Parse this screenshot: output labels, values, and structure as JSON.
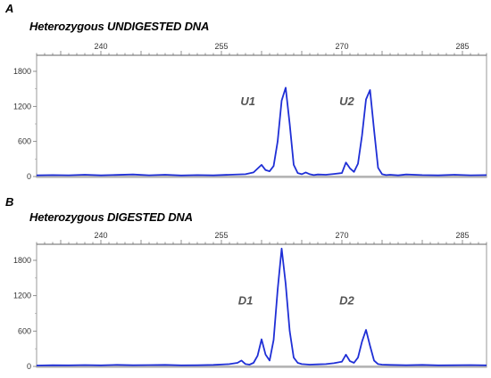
{
  "chart_data": [
    {
      "type": "line",
      "panel_label": "A",
      "title": "Heterozygous UNDIGESTED DNA",
      "x_ticks": [
        240,
        255,
        270,
        285
      ],
      "y_ticks": [
        0,
        600,
        1200,
        1800
      ],
      "xlim": [
        232,
        288
      ],
      "ylim": [
        0,
        2000
      ],
      "grid": false,
      "series": [
        {
          "color": "#1f2fd6",
          "x": [
            232,
            234,
            236,
            238,
            240,
            242,
            244,
            246,
            248,
            250,
            252,
            254,
            256,
            258,
            259,
            260,
            260.5,
            261,
            261.5,
            262,
            262.5,
            263,
            263.5,
            264,
            264.5,
            265,
            265.5,
            266,
            266.5,
            267,
            268,
            269,
            270,
            270.5,
            271,
            271.5,
            272,
            272.5,
            273,
            273.5,
            274,
            274.5,
            275,
            275.5,
            276,
            277,
            278,
            280,
            282,
            284,
            286,
            288
          ],
          "y": [
            20,
            25,
            22,
            30,
            20,
            28,
            35,
            22,
            30,
            18,
            25,
            20,
            30,
            40,
            70,
            200,
            110,
            90,
            180,
            600,
            1300,
            1520,
            900,
            200,
            60,
            40,
            70,
            40,
            25,
            35,
            30,
            45,
            60,
            240,
            140,
            80,
            220,
            700,
            1320,
            1480,
            800,
            150,
            40,
            25,
            30,
            20,
            35,
            25,
            20,
            30,
            22,
            25
          ]
        }
      ],
      "annotations": [
        {
          "text": "U1",
          "x": 258.3,
          "y": 1220
        },
        {
          "text": "U2",
          "x": 270.6,
          "y": 1220
        }
      ]
    },
    {
      "type": "line",
      "panel_label": "B",
      "title": "Heterozygous DIGESTED DNA",
      "x_ticks": [
        240,
        255,
        270,
        285
      ],
      "y_ticks": [
        0,
        600,
        1200,
        1800
      ],
      "xlim": [
        232,
        288
      ],
      "ylim": [
        0,
        2000
      ],
      "grid": false,
      "series": [
        {
          "color": "#1f2fd6",
          "x": [
            232,
            234,
            236,
            238,
            240,
            242,
            244,
            246,
            248,
            250,
            252,
            254,
            256,
            257,
            257.5,
            258,
            258.5,
            259,
            259.5,
            260,
            260.5,
            261,
            261.5,
            262,
            262.5,
            263,
            263.5,
            264,
            264.5,
            265,
            266,
            267,
            268,
            269,
            270,
            270.5,
            271,
            271.5,
            272,
            272.5,
            273,
            273.5,
            274,
            274.5,
            275,
            276,
            278,
            280,
            282,
            284,
            286,
            288
          ],
          "y": [
            15,
            20,
            18,
            22,
            18,
            25,
            20,
            22,
            25,
            18,
            20,
            25,
            40,
            60,
            100,
            40,
            30,
            60,
            180,
            460,
            200,
            100,
            450,
            1300,
            2000,
            1400,
            600,
            150,
            60,
            40,
            30,
            35,
            40,
            55,
            80,
            200,
            90,
            60,
            150,
            420,
            620,
            350,
            100,
            40,
            30,
            25,
            20,
            25,
            18,
            20,
            22,
            18
          ]
        }
      ],
      "annotations": [
        {
          "text": "D1",
          "x": 258.0,
          "y": 1050
        },
        {
          "text": "D2",
          "x": 270.6,
          "y": 1050
        }
      ]
    }
  ]
}
